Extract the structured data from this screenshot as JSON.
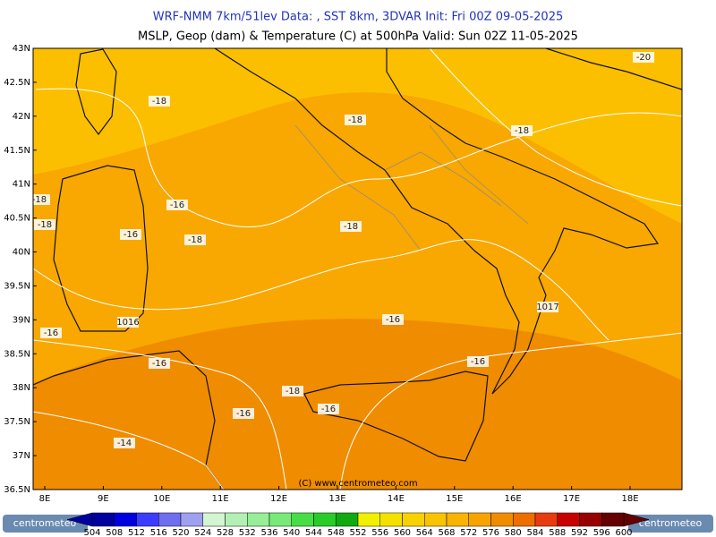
{
  "header": {
    "line1": "WRF-NMM 7km/51lev   Data: , SST 8km, 3DVAR   Init: Fri 00Z 09-05-2025",
    "line2": "MSLP, Geop (dam) & Temperature (C) at 500hPa   Valid: Sun 02Z 11-05-2025"
  },
  "map": {
    "lat_labels": [
      "43N",
      "42.5N",
      "42N",
      "41.5N",
      "41N",
      "40.5N",
      "40N",
      "39.5N",
      "39N",
      "38.5N",
      "38N",
      "37.5N",
      "37N",
      "36.5N"
    ],
    "lon_labels": [
      "8E",
      "9E",
      "10E",
      "11E",
      "12E",
      "13E",
      "14E",
      "15E",
      "16E",
      "17E",
      "18E"
    ],
    "contour_labels": [
      "-18",
      "-18",
      "-18",
      "-18",
      "-18",
      "-18",
      "-18",
      "-18",
      "-16",
      "-16",
      "-16",
      "-16",
      "-16",
      "-16",
      "-16",
      "-16",
      "-14",
      "-20",
      "1016",
      "1017"
    ],
    "copyright": "(C) www.centrometeo.com"
  },
  "colorbar": {
    "labels": [
      504,
      508,
      512,
      516,
      520,
      524,
      528,
      532,
      536,
      540,
      544,
      548,
      552,
      556,
      560,
      564,
      568,
      572,
      576,
      580,
      584,
      588,
      592,
      596,
      600
    ],
    "colors": [
      "#0000a0",
      "#0000e0",
      "#3c3cff",
      "#6e6ef0",
      "#a0a0f0",
      "#d2f5d2",
      "#b4f0b4",
      "#96ee96",
      "#78ea78",
      "#46de46",
      "#28cc28",
      "#10aa10",
      "#f0f000",
      "#f5e100",
      "#f8d200",
      "#f8c400",
      "#f8b400",
      "#f8a400",
      "#f08c00",
      "#ee6e00",
      "#e63c10",
      "#c80000",
      "#960000",
      "#640000"
    ]
  },
  "logo": {
    "left": "centrometeo",
    "right": "centrometeo"
  }
}
